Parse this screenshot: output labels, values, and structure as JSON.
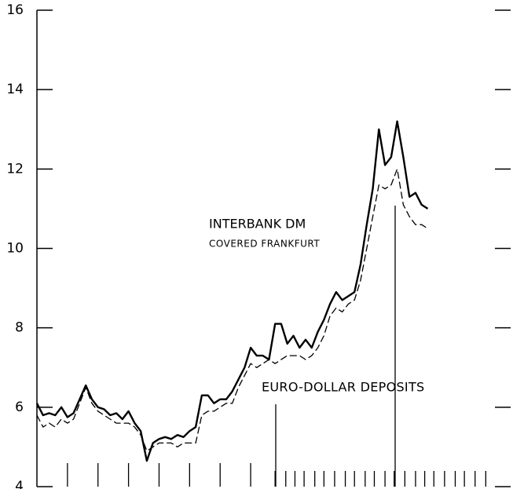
{
  "chart_data": {
    "type": "line",
    "x": [
      0,
      2,
      4,
      6,
      8,
      10,
      12,
      14,
      16,
      18,
      20,
      22,
      24,
      26,
      28,
      30,
      32,
      34,
      36,
      38,
      40,
      42,
      44,
      46,
      48,
      50,
      52,
      54,
      56,
      58,
      60,
      62,
      64,
      66,
      68,
      70,
      72,
      74,
      76,
      78,
      80,
      82,
      84,
      86,
      88,
      90,
      92,
      94,
      96,
      98,
      100,
      102,
      104,
      106,
      108,
      110,
      112,
      114,
      116,
      118,
      120,
      122,
      124,
      126,
      128
    ],
    "series": [
      {
        "color": "#000000",
        "dash": "solid",
        "values": [
          6.1,
          5.8,
          5.85,
          5.8,
          6.0,
          5.75,
          5.85,
          6.2,
          6.55,
          6.2,
          6.0,
          5.95,
          5.8,
          5.85,
          5.7,
          5.9,
          5.6,
          5.4,
          4.65,
          5.1,
          5.2,
          5.25,
          5.2,
          5.3,
          5.25,
          5.4,
          5.5,
          6.3,
          6.3,
          6.1,
          6.2,
          6.2,
          6.4,
          6.7,
          7.0,
          7.5,
          7.3,
          7.3,
          7.2,
          8.1,
          8.1,
          7.6,
          7.8,
          7.5,
          7.7,
          7.5,
          7.9,
          8.2,
          8.6,
          8.9,
          8.7,
          8.8,
          8.9,
          9.6,
          10.6,
          11.5,
          13.0,
          12.1,
          12.3,
          13.2,
          12.3,
          11.3,
          11.4,
          11.1,
          11.0
        ]
      },
      {
        "color": "#000000",
        "dash": "dashed",
        "values": [
          5.8,
          5.5,
          5.6,
          5.5,
          5.7,
          5.6,
          5.7,
          6.1,
          6.5,
          6.1,
          5.9,
          5.8,
          5.7,
          5.6,
          5.6,
          5.6,
          5.5,
          5.3,
          4.9,
          5.0,
          5.1,
          5.1,
          5.1,
          5.0,
          5.1,
          5.1,
          5.1,
          5.8,
          5.9,
          5.9,
          6.0,
          6.1,
          6.1,
          6.5,
          6.8,
          7.1,
          7.0,
          7.1,
          7.2,
          7.1,
          7.2,
          7.3,
          7.3,
          7.3,
          7.2,
          7.3,
          7.5,
          7.8,
          8.3,
          8.5,
          8.4,
          8.6,
          8.7,
          9.2,
          10.0,
          10.8,
          11.6,
          11.5,
          11.6,
          12.0,
          11.1,
          10.8,
          10.6,
          10.6,
          10.5
        ]
      }
    ],
    "xlim": [
      0,
      150
    ],
    "xticks": [
      10,
      20,
      30,
      40,
      50,
      60,
      70,
      78,
      81.5,
      84.5,
      87.5,
      91,
      94,
      97.5,
      101,
      104,
      107.5,
      110.5,
      114,
      117,
      120.5,
      124,
      127,
      130,
      133.5,
      137,
      140,
      143.5,
      147
    ],
    "ylim": [
      4,
      16
    ],
    "yticks": [
      4,
      6,
      8,
      10,
      12,
      14,
      16
    ],
    "annotations": [
      "INTERBANK DM",
      "COVERED FRANKFURT",
      "EURO-DOLLAR DEPOSITS"
    ]
  }
}
